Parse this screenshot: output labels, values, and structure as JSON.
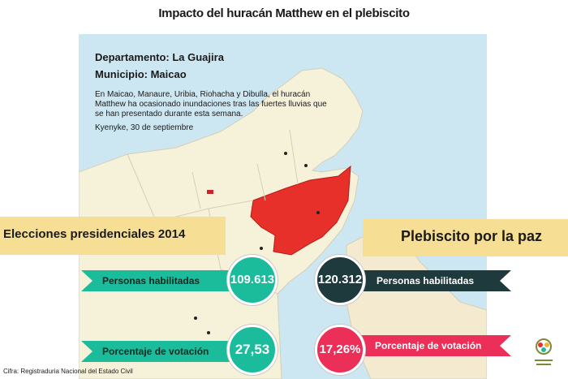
{
  "title": "Impacto del huracán Matthew en el plebiscito",
  "map_panel": {
    "departamento": "Departamento: La Guajira",
    "municipio": "Municipio: Maicao",
    "description": "En Maicao, Manaure, Uribia, Riohacha y Dibulla, el huracán Matthew ha ocasionado inundaciones tras las fuertes lluvias que se han presentado durante esta semana.",
    "source_line": "Kyenyke, 30 de septiembre",
    "colors": {
      "sea": "#cde7f2",
      "land": "#f6f1d9",
      "highlight": "#e8302a",
      "land_border": "#d4cfb8",
      "dot": "#222222"
    }
  },
  "left_section": {
    "header": "Elecciones presidenciales 2014",
    "personas_label": "Personas habilitadas",
    "personas_value": "109.613",
    "porcentaje_label": "Porcentaje de votación",
    "porcentaje_value": "27,53",
    "color": "#1bbc9b"
  },
  "right_section": {
    "header": "Plebiscito por la paz",
    "personas_label": "Personas habilitadas",
    "personas_value": "120.312",
    "porcentaje_label": "Porcentaje de votación",
    "porcentaje_value": "17,26%",
    "color_dark": "#1f3a3d",
    "color_pink": "#ec2f59"
  },
  "footer": {
    "cifra": "Cifra: Registraduria Nacional del Estado Civil"
  },
  "band_color": "#f6de95"
}
